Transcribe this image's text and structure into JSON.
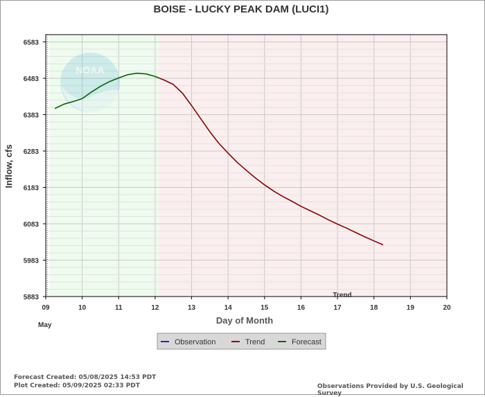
{
  "chart_data": {
    "type": "line",
    "title": "BOISE - LUCKY PEAK DAM  (LUCI1)",
    "xlabel": "Day of Month",
    "ylabel": "Inflow, cfs",
    "x_month_label": "May",
    "x_ticks": [
      "09",
      "10",
      "11",
      "12",
      "13",
      "14",
      "15",
      "16",
      "17",
      "18",
      "19",
      "20"
    ],
    "y_ticks": [
      "6583",
      "6483",
      "6383",
      "6283",
      "6183",
      "6083",
      "5983",
      "5883"
    ],
    "xlim": [
      9.0,
      20.0
    ],
    "ylim": [
      5883,
      6603
    ],
    "grid": true,
    "shaded_regions": [
      {
        "name": "forecast-region",
        "x_start": 9.1,
        "x_end": 12.1,
        "color": "#eefbee"
      },
      {
        "name": "trend-region",
        "x_start": 12.1,
        "x_end": 20.0,
        "color": "#fbeeee"
      }
    ],
    "regions_label": "Trend",
    "series": [
      {
        "name": "Observation",
        "color": "#1f1fd0",
        "x": [],
        "y": []
      },
      {
        "name": "Forecast",
        "color": "#006400",
        "x": [
          9.25,
          9.5,
          9.75,
          10.0,
          10.25,
          10.5,
          10.75,
          11.0,
          11.25,
          11.5,
          11.75,
          12.0,
          12.1
        ],
        "y": [
          6400,
          6412,
          6419,
          6427,
          6445,
          6461,
          6474,
          6484,
          6493,
          6497,
          6495,
          6488,
          6484
        ]
      },
      {
        "name": "Trend",
        "color": "#8b0000",
        "x": [
          12.1,
          12.25,
          12.5,
          12.75,
          13.0,
          13.25,
          13.5,
          13.75,
          14.0,
          14.25,
          14.5,
          14.75,
          15.0,
          15.25,
          15.5,
          15.75,
          16.0,
          16.25,
          16.5,
          16.75,
          17.0,
          17.25,
          17.5,
          17.75,
          18.0,
          18.25
        ],
        "y": [
          6484,
          6478,
          6466,
          6442,
          6408,
          6372,
          6336,
          6304,
          6277,
          6252,
          6230,
          6209,
          6190,
          6173,
          6158,
          6145,
          6131,
          6119,
          6107,
          6094,
          6082,
          6071,
          6059,
          6047,
          6036,
          6025
        ]
      }
    ],
    "legend": {
      "placement": "bottom-center",
      "items": [
        {
          "label": "Observation",
          "color": "#1f1fd0"
        },
        {
          "label": "Trend",
          "color": "#8b0000"
        },
        {
          "label": "Forecast",
          "color": "#006400"
        }
      ]
    }
  },
  "watermark": {
    "text": "NOAA"
  },
  "footer": {
    "forecast_created": "Forecast Created: 05/08/2025 14:53 PDT",
    "plot_created": "Plot Created: 05/09/2025 02:33 PDT",
    "source": "Observations Provided by U.S. Geological Survey"
  }
}
